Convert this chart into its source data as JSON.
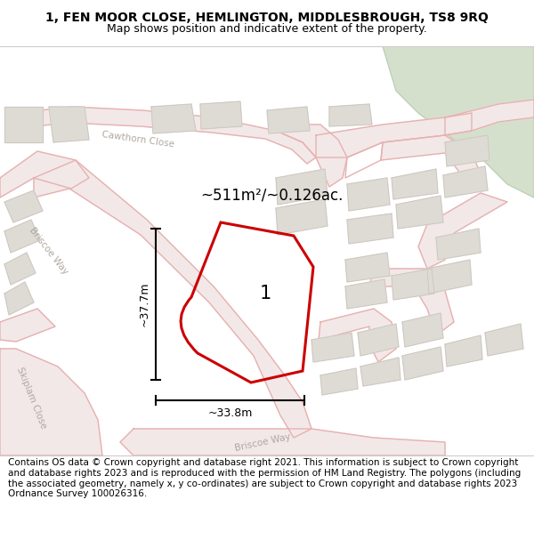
{
  "title_line1": "1, FEN MOOR CLOSE, HEMLINGTON, MIDDLESBROUGH, TS8 9RQ",
  "title_line2": "Map shows position and indicative extent of the property.",
  "area_text": "~511m²/~0.126ac.",
  "label_number": "1",
  "dim_width": "~33.8m",
  "dim_height": "~37.7m",
  "footer": "Contains OS data © Crown copyright and database right 2021. This information is subject to Crown copyright and database rights 2023 and is reproduced with the permission of HM Land Registry. The polygons (including the associated geometry, namely x, y co-ordinates) are subject to Crown copyright and database rights 2023 Ordnance Survey 100026316.",
  "map_bg": "#f5f3f0",
  "road_line_color": "#e8b0b0",
  "road_fill_color": "#f2e8e8",
  "building_color": "#dedad4",
  "building_outline": "#c8c4bc",
  "plot_outline": "#cc0000",
  "green_area": "#d4e0cc",
  "green_outline": "#b8ccb0",
  "road_label_color": "#b0a8a0",
  "dim_color": "#000000",
  "area_text_color": "#000000",
  "label_color": "#000000",
  "title_fontsize": 10,
  "subtitle_fontsize": 9,
  "footer_fontsize": 7.5
}
